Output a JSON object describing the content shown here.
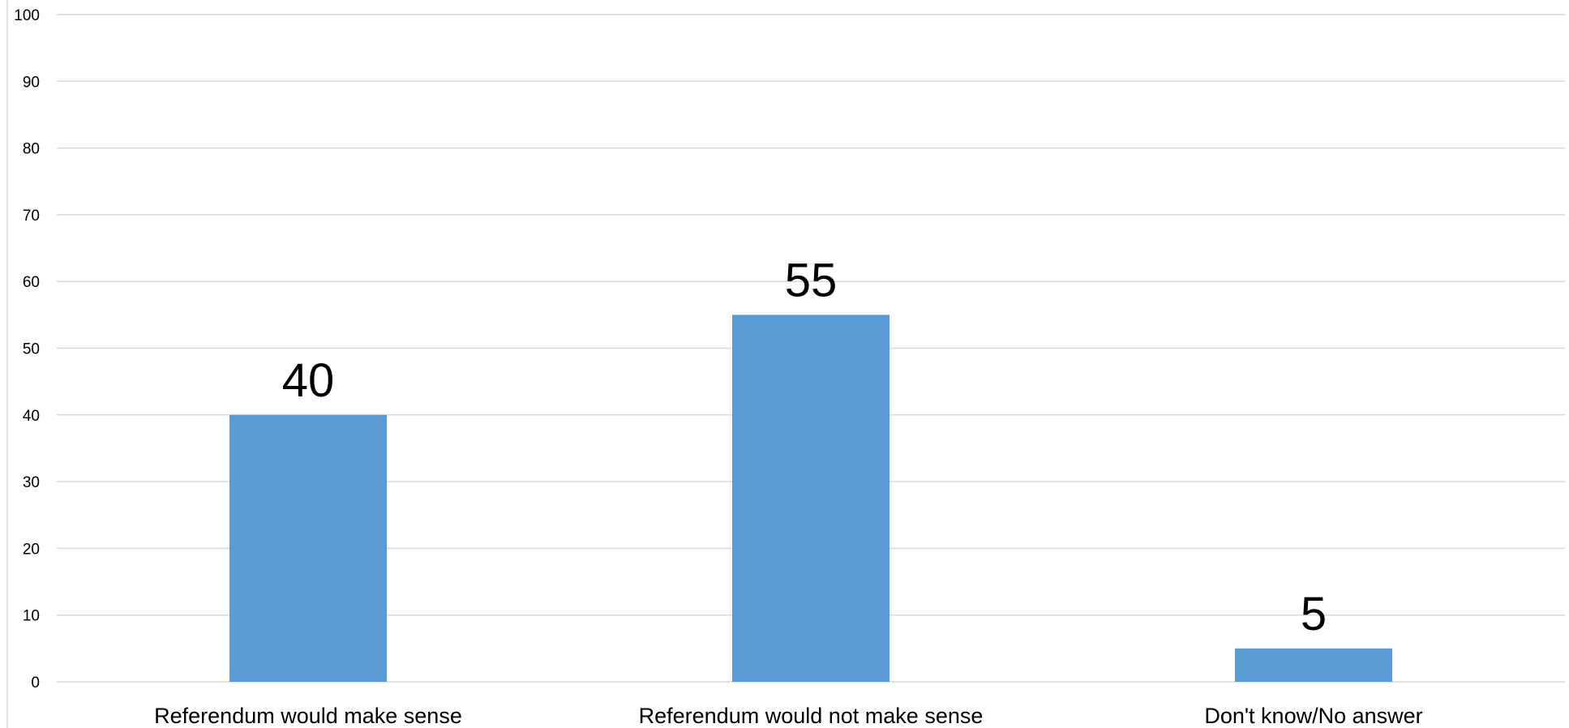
{
  "chart_data": {
    "type": "bar",
    "title": "",
    "xlabel": "",
    "ylabel": "",
    "categories": [
      "Referendum would make sense",
      "Referendum would not make sense",
      "Don't know/No answer"
    ],
    "values": [
      40,
      55,
      5
    ],
    "data_labels": [
      "40",
      "55",
      "5"
    ],
    "ylim": [
      0,
      100
    ],
    "yticks": [
      0,
      10,
      20,
      30,
      40,
      50,
      60,
      70,
      80,
      90,
      100
    ],
    "grid": true,
    "legend": "none",
    "colors": {
      "bar": "#5b9bd5",
      "gridline": "#d9d9d9",
      "text": "#000000",
      "background": "#ffffff"
    }
  }
}
